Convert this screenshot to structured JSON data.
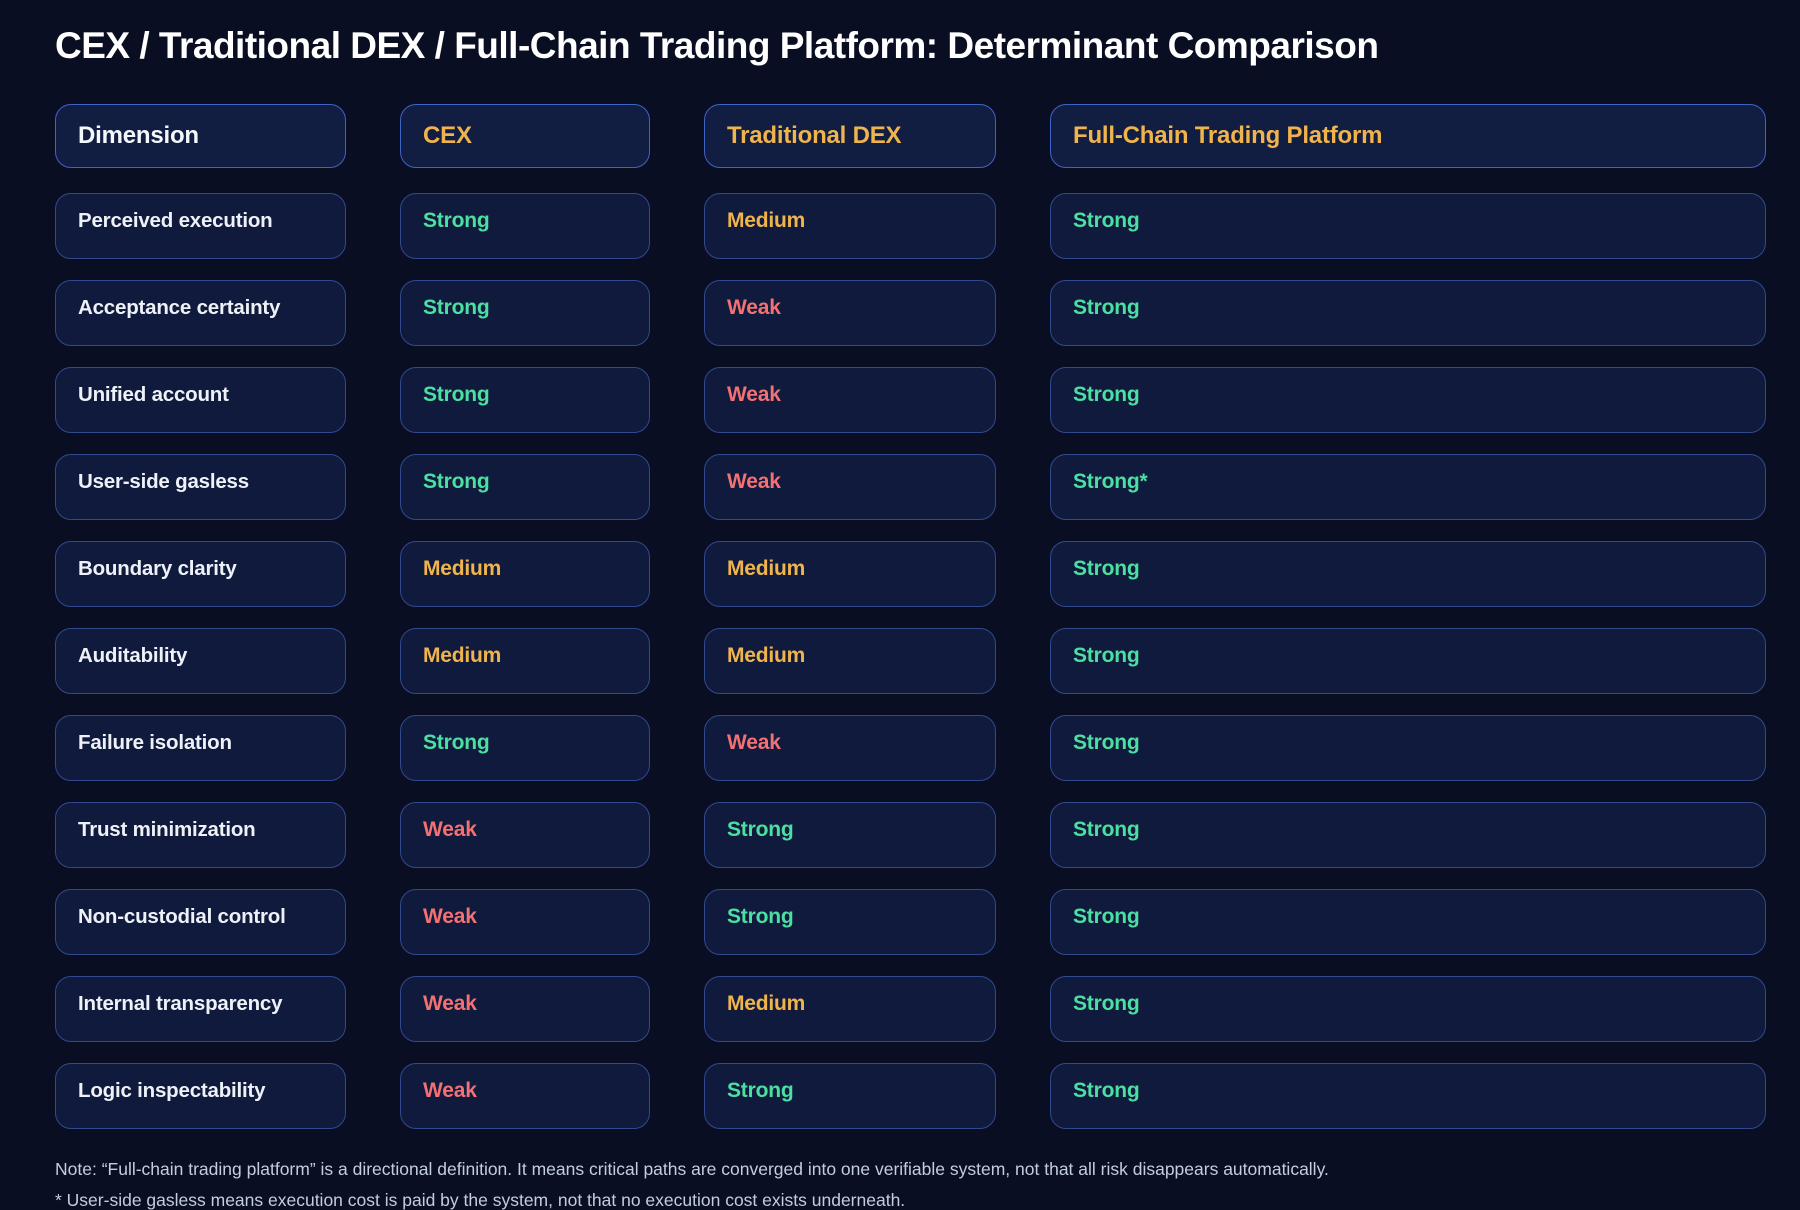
{
  "title": "CEX / Traditional DEX / Full-Chain Trading Platform: Determinant Comparison",
  "chart_data": {
    "type": "table",
    "columns": [
      "Dimension",
      "CEX",
      "Traditional DEX",
      "Full-Chain Trading Platform"
    ],
    "rows": [
      {
        "dimension": "Perceived execution",
        "values": [
          "Strong",
          "Medium",
          "Strong"
        ]
      },
      {
        "dimension": "Acceptance certainty",
        "values": [
          "Strong",
          "Weak",
          "Strong"
        ]
      },
      {
        "dimension": "Unified account",
        "values": [
          "Strong",
          "Weak",
          "Strong"
        ]
      },
      {
        "dimension": "User-side gasless",
        "values": [
          "Strong",
          "Weak",
          "Strong*"
        ]
      },
      {
        "dimension": "Boundary clarity",
        "values": [
          "Medium",
          "Medium",
          "Strong"
        ]
      },
      {
        "dimension": "Auditability",
        "values": [
          "Medium",
          "Medium",
          "Strong"
        ]
      },
      {
        "dimension": "Failure isolation",
        "values": [
          "Strong",
          "Weak",
          "Strong"
        ]
      },
      {
        "dimension": "Trust minimization",
        "values": [
          "Weak",
          "Strong",
          "Strong"
        ]
      },
      {
        "dimension": "Non-custodial control",
        "values": [
          "Weak",
          "Strong",
          "Strong"
        ]
      },
      {
        "dimension": "Internal transparency",
        "values": [
          "Weak",
          "Medium",
          "Strong"
        ]
      },
      {
        "dimension": "Logic inspectability",
        "values": [
          "Weak",
          "Strong",
          "Strong"
        ]
      }
    ],
    "rating_scale": [
      "Strong",
      "Medium",
      "Weak"
    ],
    "legend_position": "none",
    "grid": "off"
  },
  "notes": [
    "Note: “Full-chain trading platform” is a directional definition. It means critical paths are converged into one verifiable system, not that all risk disappears automatically.",
    "* User-side gasless means execution cost is paid by the system, not that no execution cost exists underneath."
  ],
  "colors": {
    "strong": "#4be0a2",
    "medium": "#f0b44c",
    "weak": "#f47173",
    "header_gold": "#f0b44c",
    "background": "#0a0e22",
    "cell_fill": "#101a3c",
    "header_fill": "#121d42",
    "cell_border": "#31498f",
    "header_border": "#3e64c4",
    "note_text": "#c3cde0"
  }
}
